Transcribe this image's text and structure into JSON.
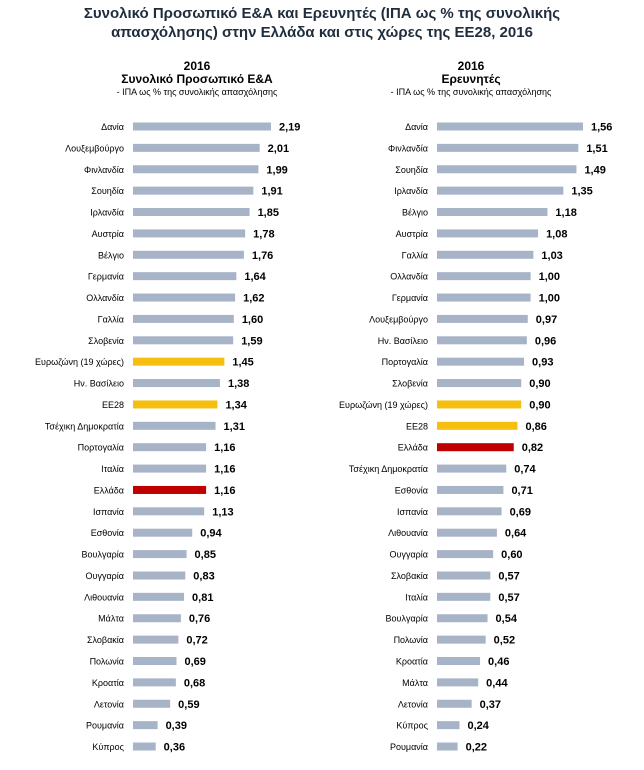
{
  "main_title": {
    "line1": "Συνολικό Προσωπικό Ε&Α και Ερευνητές (ΙΠΑ ως % της συνολικής",
    "line2": "απασχόλησης) στην Ελλάδα και στις χώρες της ΕΕ28, 2016"
  },
  "colors": {
    "default": "#a7b3c7",
    "highlight": "#f5bf0f",
    "greece": "#c00000"
  },
  "chart_data": [
    {
      "type": "bar",
      "orientation": "horizontal",
      "year_label": "2016",
      "title": "Συνολικό Προσωπικό Ε&Α",
      "subtitle": "- ΙΠΑ ως % της συνολικής απασχόλησης",
      "categories": [
        "Δανία",
        "Λουξεμβούργο",
        "Φινλανδία",
        "Σουηδία",
        "Ιρλανδία",
        "Αυστρία",
        "Βέλγιο",
        "Γερμανία",
        "Ολλανδία",
        "Γαλλία",
        "Σλοβενία",
        "Ευρωζώνη (19 χώρες)",
        "Ην. Βασίλειο",
        "ΕΕ28",
        "Τσέχικη Δημοκρατία",
        "Πορτογαλία",
        "Ιταλία",
        "Ελλάδα",
        "Ισπανία",
        "Εσθονία",
        "Βουλγαρία",
        "Ουγγαρία",
        "Λιθουανία",
        "Μάλτα",
        "Σλοβακία",
        "Πολωνία",
        "Κροατία",
        "Λετονία",
        "Ρουμανία",
        "Κύπρος"
      ],
      "values": [
        2.19,
        2.01,
        1.99,
        1.91,
        1.85,
        1.78,
        1.76,
        1.64,
        1.62,
        1.6,
        1.59,
        1.45,
        1.38,
        1.34,
        1.31,
        1.16,
        1.16,
        1.16,
        1.13,
        0.94,
        0.85,
        0.83,
        0.81,
        0.76,
        0.72,
        0.69,
        0.68,
        0.59,
        0.39,
        0.36
      ],
      "value_labels": [
        "2,19",
        "2,01",
        "1,99",
        "1,91",
        "1,85",
        "1,78",
        "1,76",
        "1,64",
        "1,62",
        "1,60",
        "1,59",
        "1,45",
        "1,38",
        "1,34",
        "1,31",
        "1,16",
        "1,16",
        "1,16",
        "1,13",
        "0,94",
        "0,85",
        "0,83",
        "0,81",
        "0,76",
        "0,72",
        "0,69",
        "0,68",
        "0,59",
        "0,39",
        "0,36"
      ],
      "highlight": {
        "Ευρωζώνη (19 χώρες)": "highlight",
        "ΕΕ28": "highlight",
        "Ελλάδα": "greece"
      },
      "xlim": [
        0,
        2.3
      ],
      "grid": false
    },
    {
      "type": "bar",
      "orientation": "horizontal",
      "year_label": "2016",
      "title": "Ερευνητές",
      "subtitle": "- ΙΠΑ ως % της συνολικής απασχόλησης",
      "categories": [
        "Δανία",
        "Φινλανδία",
        "Σουηδία",
        "Ιρλανδία",
        "Βέλγιο",
        "Αυστρία",
        "Γαλλία",
        "Ολλανδία",
        "Γερμανία",
        "Λουξεμβούργο",
        "Ην. Βασίλειο",
        "Πορτογαλία",
        "Σλοβενία",
        "Ευρωζώνη (19 χώρες)",
        "ΕΕ28",
        "Ελλάδα",
        "Τσέχικη Δημοκρατία",
        "Εσθονία",
        "Ισπανία",
        "Λιθουανία",
        "Ουγγαρία",
        "Σλοβακία",
        "Ιταλία",
        "Βουλγαρία",
        "Πολωνία",
        "Κροατία",
        "Μάλτα",
        "Λετονία",
        "Κύπρος",
        "Ρουμανία"
      ],
      "values": [
        1.56,
        1.51,
        1.49,
        1.35,
        1.18,
        1.08,
        1.03,
        1.0,
        1.0,
        0.97,
        0.96,
        0.93,
        0.9,
        0.9,
        0.86,
        0.82,
        0.74,
        0.71,
        0.69,
        0.64,
        0.6,
        0.57,
        0.57,
        0.54,
        0.52,
        0.46,
        0.44,
        0.37,
        0.24,
        0.22
      ],
      "value_labels": [
        "1,56",
        "1,51",
        "1,49",
        "1,35",
        "1,18",
        "1,08",
        "1,03",
        "1,00",
        "1,00",
        "0,97",
        "0,96",
        "0,93",
        "0,90",
        "0,90",
        "0,86",
        "0,82",
        "0,74",
        "0,71",
        "0,69",
        "0,64",
        "0,60",
        "0,57",
        "0,57",
        "0,54",
        "0,52",
        "0,46",
        "0,44",
        "0,37",
        "0,24",
        "0,22"
      ],
      "highlight": {
        "Ευρωζώνη (19 χώρες)": "highlight",
        "ΕΕ28": "highlight",
        "Ελλάδα": "greece"
      },
      "xlim": [
        0,
        1.6
      ],
      "grid": false
    }
  ]
}
